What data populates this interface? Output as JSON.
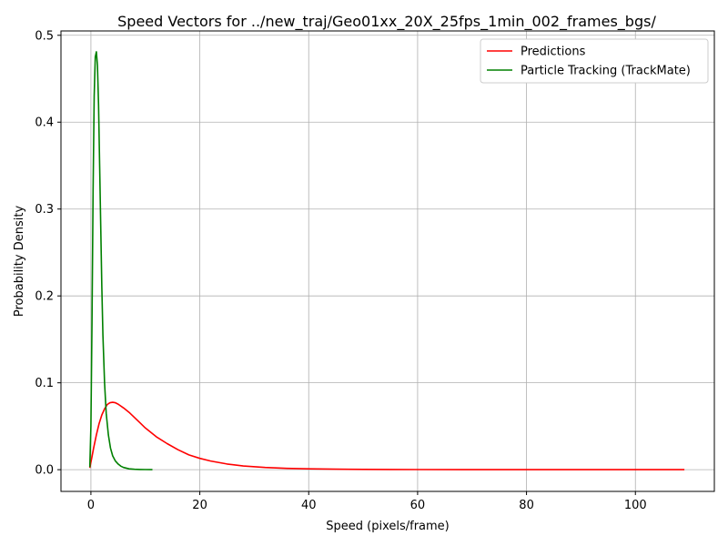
{
  "chart_data": {
    "type": "line",
    "title": "Speed Vectors for ../new_traj/Geo01xx_20X_25fps_1min_002_frames_bgs/",
    "xlabel": "Speed (pixels/frame)",
    "ylabel": "Probability Density",
    "xlim": [
      -5.5,
      114.5
    ],
    "ylim": [
      -0.025,
      0.505
    ],
    "xticks": [
      0,
      20,
      40,
      60,
      80,
      100
    ],
    "yticks": [
      0.0,
      0.1,
      0.2,
      0.3,
      0.4,
      0.5
    ],
    "xtick_labels": [
      "0",
      "20",
      "40",
      "60",
      "80",
      "100"
    ],
    "ytick_labels": [
      "0.0",
      "0.1",
      "0.2",
      "0.3",
      "0.4",
      "0.5"
    ],
    "grid": true,
    "legend_position": "top-right",
    "series": [
      {
        "name": "Predictions",
        "color": "#ff0000",
        "x": [
          -0.2,
          0.2,
          0.5,
          1.0,
          1.5,
          2.0,
          2.5,
          3.0,
          3.5,
          4.0,
          4.5,
          5.0,
          6.0,
          7.0,
          8.0,
          9.0,
          10.0,
          12.0,
          14.0,
          16.0,
          18.0,
          20.0,
          22.0,
          25.0,
          28.0,
          32.0,
          36.0,
          40.0,
          45.0,
          50.0,
          55.0,
          60.0,
          70.0,
          80.0,
          90.0,
          100.0,
          109.0
        ],
        "y": [
          0.002,
          0.015,
          0.025,
          0.04,
          0.053,
          0.063,
          0.07,
          0.075,
          0.077,
          0.0775,
          0.077,
          0.0755,
          0.071,
          0.066,
          0.06,
          0.054,
          0.048,
          0.038,
          0.03,
          0.023,
          0.017,
          0.013,
          0.01,
          0.0065,
          0.0042,
          0.0025,
          0.0015,
          0.001,
          0.0006,
          0.0004,
          0.0002,
          0.0001,
          5e-05,
          2e-05,
          1e-05,
          0.0,
          0.0
        ]
      },
      {
        "name": "Particle Tracking (TrackMate)",
        "color": "#008000",
        "x": [
          -0.2,
          0.0,
          0.2,
          0.4,
          0.6,
          0.8,
          1.0,
          1.2,
          1.4,
          1.6,
          1.8,
          2.0,
          2.2,
          2.5,
          2.8,
          3.2,
          3.6,
          4.0,
          4.5,
          5.0,
          5.5,
          6.0,
          7.0,
          8.0,
          9.0,
          10.0,
          11.3
        ],
        "y": [
          0.003,
          0.05,
          0.17,
          0.32,
          0.43,
          0.475,
          0.481,
          0.465,
          0.42,
          0.35,
          0.28,
          0.21,
          0.155,
          0.1,
          0.065,
          0.04,
          0.025,
          0.016,
          0.01,
          0.0065,
          0.004,
          0.0025,
          0.001,
          0.0005,
          0.0002,
          0.0001,
          0.0
        ]
      }
    ]
  }
}
